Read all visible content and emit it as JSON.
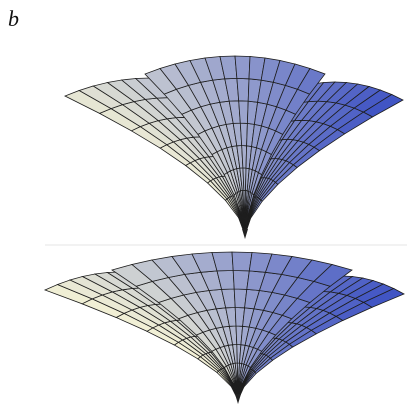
{
  "panel_label": "b"
}
